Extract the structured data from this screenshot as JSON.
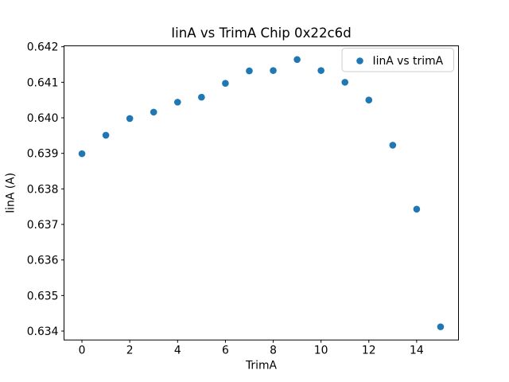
{
  "figure": {
    "background": "#ffffff",
    "spine_color": "#000000",
    "legend_border_color": "#cccccc"
  },
  "chart_data": {
    "type": "scatter",
    "title": "IinA vs TrimA Chip 0x22c6d",
    "xlabel": "TrimA",
    "ylabel": "IinA (A)",
    "legend": {
      "entries": [
        "IinA vs trimA"
      ],
      "position": "upper right"
    },
    "marker_color": "#1f77b4",
    "grid": false,
    "x": [
      0,
      1,
      2,
      3,
      4,
      5,
      6,
      7,
      8,
      9,
      10,
      11,
      12,
      13,
      14,
      15
    ],
    "y": [
      0.63899,
      0.63951,
      0.63998,
      0.64016,
      0.64044,
      0.64058,
      0.64097,
      0.64132,
      0.64133,
      0.64164,
      0.64133,
      0.641,
      0.6405,
      0.63923,
      0.63743,
      0.63412
    ],
    "xlim": [
      -0.75,
      15.75
    ],
    "ylim": [
      0.633749,
      0.642025
    ],
    "xticks": [
      0,
      2,
      4,
      6,
      8,
      10,
      12,
      14
    ],
    "yticks": [
      0.634,
      0.635,
      0.636,
      0.637,
      0.638,
      0.639,
      0.64,
      0.641,
      0.642
    ],
    "ytick_decimals": 3
  }
}
